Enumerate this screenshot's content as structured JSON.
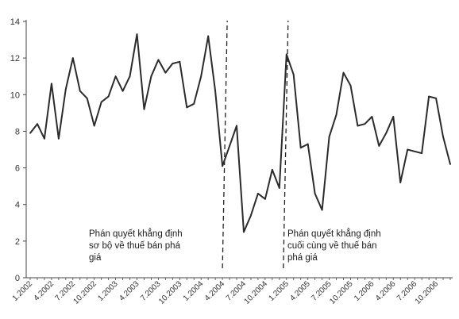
{
  "chart_data": {
    "type": "line",
    "title": "",
    "xlabel": "",
    "ylabel": "",
    "ylim": [
      0,
      14
    ],
    "y_ticks": [
      0,
      2,
      4,
      6,
      8,
      10,
      12,
      14
    ],
    "grid": false,
    "legend": "none",
    "line_color": "#2b2b2b",
    "x": [
      "1.2002",
      "2.2002",
      "3.2002",
      "4.2002",
      "5.2002",
      "6.2002",
      "7.2002",
      "8.2002",
      "9.2002",
      "10.2002",
      "11.2002",
      "12.2002",
      "1.2003",
      "2.2003",
      "3.2003",
      "4.2003",
      "5.2003",
      "6.2003",
      "7.2003",
      "8.2003",
      "9.2003",
      "10.2003",
      "11.2003",
      "12.2003",
      "1.2004",
      "2.2004",
      "3.2004",
      "4.2004",
      "5.2004",
      "6.2004",
      "7.2004",
      "8.2004",
      "9.2004",
      "10.2004",
      "11.2004",
      "12.2004",
      "1.2005",
      "2.2005",
      "3.2005",
      "4.2005",
      "5.2005",
      "6.2005",
      "7.2005",
      "8.2005",
      "9.2005",
      "10.2005",
      "11.2005",
      "12.2005",
      "1.2006",
      "2.2006",
      "3.2006",
      "4.2006",
      "5.2006",
      "6.2006",
      "7.2006",
      "8.2006",
      "9.2006",
      "10.2006",
      "11.2006",
      "12.2006"
    ],
    "x_tick_labels": [
      "1.2002",
      "4.2002",
      "7.2002",
      "10.2002",
      "1.2003",
      "4.2003",
      "7.2003",
      "10.2003",
      "1.2004",
      "4.2004",
      "7.2004",
      "10.2004",
      "1.2005",
      "4.2005",
      "7.2005",
      "10.2005",
      "1.2006",
      "4.2006",
      "7.2006",
      "10.2006"
    ],
    "series": [
      {
        "values": [
          7.9,
          8.4,
          7.6,
          10.6,
          7.6,
          10.3,
          12.0,
          10.2,
          9.8,
          8.3,
          9.6,
          9.9,
          11.0,
          10.2,
          11.0,
          13.3,
          9.2,
          11.0,
          11.9,
          11.2,
          11.7,
          11.8,
          9.3,
          9.5,
          11.0,
          13.2,
          10.2,
          6.1,
          7.2,
          8.3,
          2.5,
          3.4,
          4.6,
          4.3,
          5.9,
          4.9,
          12.2,
          11.1,
          7.1,
          7.3,
          4.6,
          3.7,
          7.7,
          8.9,
          11.2,
          10.5,
          8.3,
          8.4,
          8.8,
          7.2,
          7.9,
          8.8,
          5.2,
          7.0,
          6.9,
          6.8,
          9.9,
          9.8,
          7.7,
          6.2
        ]
      }
    ],
    "markers": [
      {
        "at": "3.2004",
        "style": "dashed",
        "label_lines": [
          "Phán quyết khẳng định",
          "sơ bộ về thuế bán phá",
          "giá"
        ]
      },
      {
        "at": "12.2004",
        "style": "dashed",
        "label_lines": [
          "Phán quyết khẳng định",
          "cuối cùng về thuế bán",
          "phá giá"
        ]
      }
    ]
  }
}
